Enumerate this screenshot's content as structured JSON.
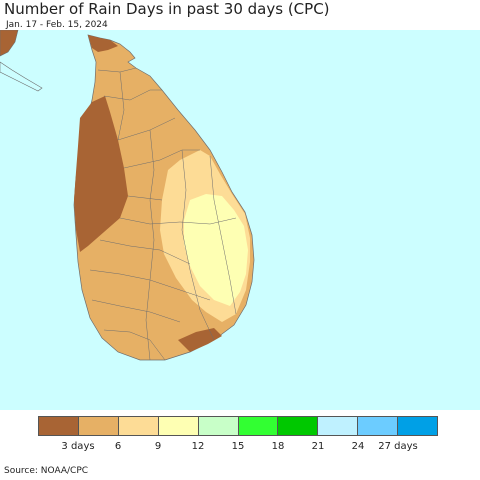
{
  "title": "Number of Rain Days in past 30 days (CPC)",
  "subtitle": "Jan. 17 - Feb. 15, 2024",
  "source": "Source: NOAA/CPC",
  "colors": {
    "ocean": "#ccfeff",
    "outline": "#6e6e6e"
  },
  "legend": {
    "colors": [
      "#a86434",
      "#e6b065",
      "#fddc96",
      "#feffb3",
      "#c8ffc8",
      "#32ff32",
      "#00c800",
      "#bff1ff",
      "#6cccff",
      "#00a0e6"
    ],
    "tick_labels": [
      "3 days",
      "6",
      "9",
      "12",
      "15",
      "18",
      "21",
      "24",
      "27 days"
    ]
  }
}
